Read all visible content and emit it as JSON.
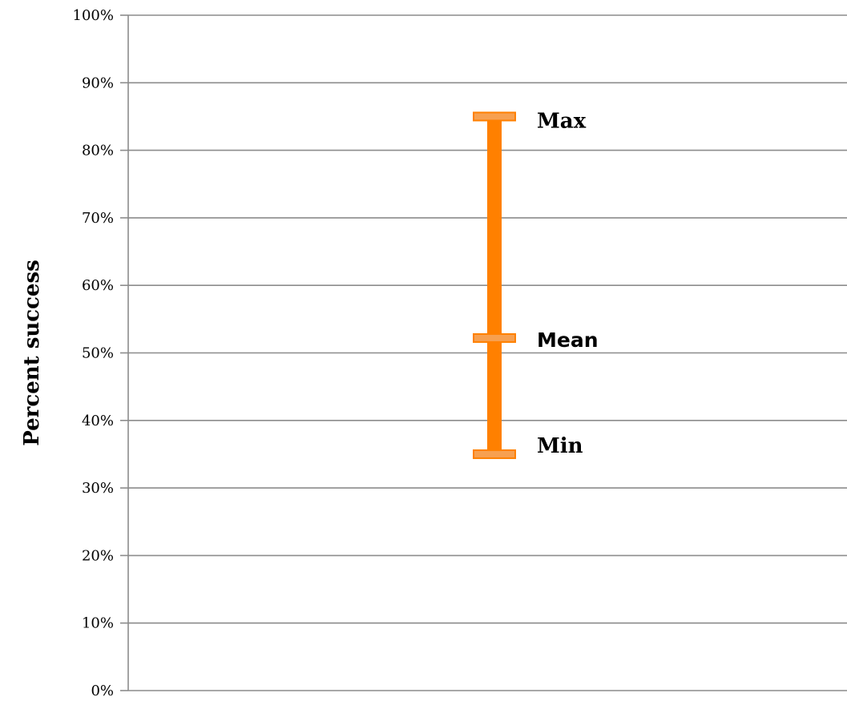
{
  "chart_data": {
    "type": "error_bar",
    "title": "",
    "xlabel": "",
    "ylabel": "Percent success",
    "ylim": [
      0,
      100
    ],
    "y_ticks": [
      "0%",
      "10%",
      "20%",
      "30%",
      "40%",
      "50%",
      "60%",
      "70%",
      "80%",
      "90%",
      "100%"
    ],
    "y_tick_values": [
      0,
      10,
      20,
      30,
      40,
      50,
      60,
      70,
      80,
      90,
      100
    ],
    "grid": true,
    "legend": "none",
    "series": [
      {
        "min": 35,
        "mean": 52.2,
        "max": 85,
        "color": "#ff8000",
        "cap_color": "#f7a050"
      }
    ],
    "annotations": {
      "max_label": "Max",
      "mean_label": "Mean",
      "min_label": "Min"
    }
  }
}
